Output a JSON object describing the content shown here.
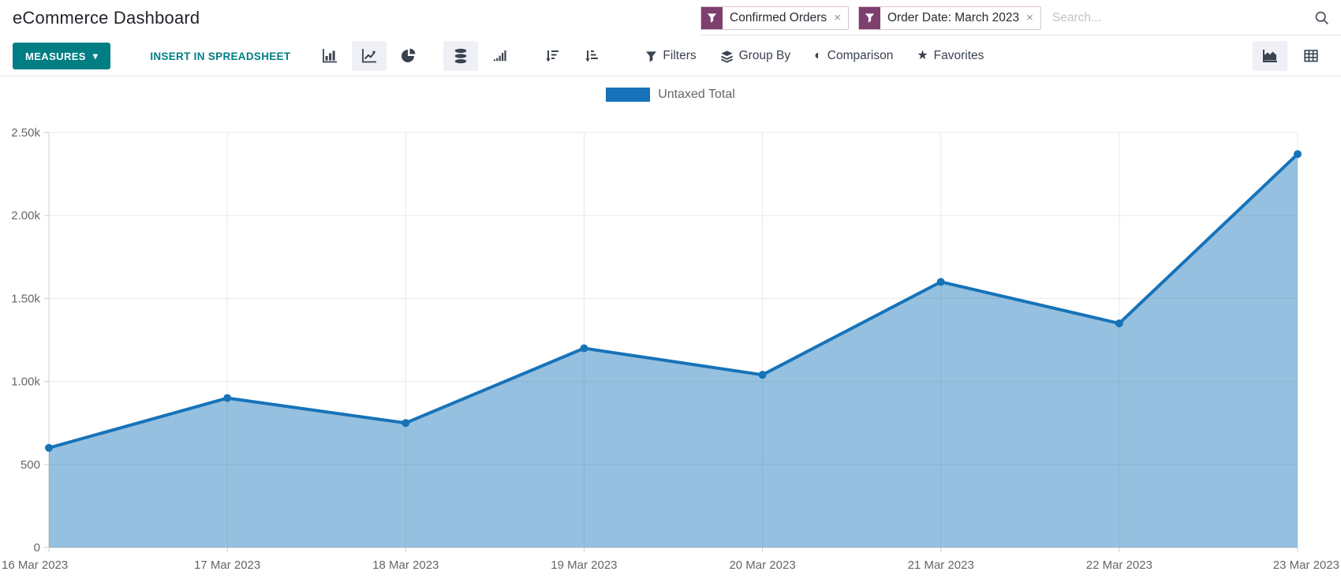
{
  "header": {
    "title": "eCommerce Dashboard",
    "search": {
      "placeholder": "Search...",
      "facets": [
        {
          "label": "Confirmed Orders"
        },
        {
          "label": "Order Date: March 2023"
        }
      ]
    }
  },
  "toolbar": {
    "measures_label": "MEASURES",
    "insert_in_spreadsheet_label": "INSERT IN SPREADSHEET",
    "menu_items": [
      {
        "label": "Filters",
        "icon": "filter-funnel-icon"
      },
      {
        "label": "Group By",
        "icon": "layers-icon"
      },
      {
        "label": "Comparison",
        "icon": "half-circle-icon"
      },
      {
        "label": "Favorites",
        "icon": "star-icon"
      }
    ],
    "chart_type_buttons": [
      {
        "name": "bar-chart-button",
        "active": false
      },
      {
        "name": "line-chart-button",
        "active": true
      },
      {
        "name": "pie-chart-button",
        "active": false
      }
    ],
    "option_buttons": [
      {
        "name": "stacked-button",
        "active": true
      },
      {
        "name": "cumulative-button",
        "active": false
      },
      {
        "name": "sort-descending-button",
        "active": false
      },
      {
        "name": "sort-ascending-button",
        "active": false
      }
    ],
    "view_switcher": [
      {
        "name": "graph-view-button",
        "active": true
      },
      {
        "name": "list-view-button",
        "active": false
      }
    ]
  },
  "icons": {
    "caret_down": "▾",
    "close": "×",
    "star": "★",
    "comparison": "◐"
  },
  "colors": {
    "teal": "#017e84",
    "facet_purple": "#7d3f6d",
    "line_blue": "#1673b9",
    "area_fill_opacity": 0.45,
    "grid": "#e9e9e9",
    "axis_line": "#cfcfcf",
    "axis_text": "#666666"
  },
  "chart_data": {
    "type": "area",
    "title": "",
    "xlabel": "",
    "ylabel": "",
    "categories": [
      "16 Mar 2023",
      "17 Mar 2023",
      "18 Mar 2023",
      "19 Mar 2023",
      "20 Mar 2023",
      "21 Mar 2023",
      "22 Mar 2023",
      "23 Mar 2023"
    ],
    "series": [
      {
        "name": "Untaxed Total",
        "color": "#1673b9",
        "values": [
          600,
          900,
          750,
          1200,
          1040,
          1600,
          1350,
          2370
        ]
      }
    ],
    "ylim": [
      0,
      2500
    ],
    "yticks": [
      {
        "value": 0,
        "label": "0"
      },
      {
        "value": 500,
        "label": "500"
      },
      {
        "value": 1000,
        "label": "1.00k"
      },
      {
        "value": 1500,
        "label": "1.50k"
      },
      {
        "value": 2000,
        "label": "2.00k"
      },
      {
        "value": 2500,
        "label": "2.50k"
      }
    ],
    "grid": true,
    "legend_position": "top-center",
    "marker": "circle",
    "line_width": 4
  }
}
